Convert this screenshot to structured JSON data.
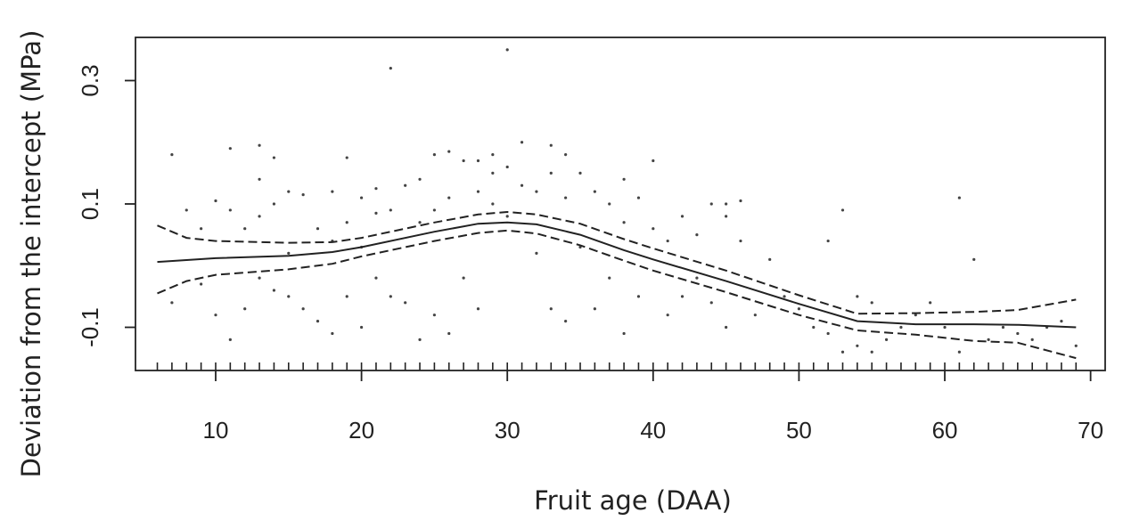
{
  "chart_data": {
    "type": "line",
    "title": "",
    "xlabel": "Fruit age (DAA)",
    "ylabel": "Deviation from the intercept (MPa)",
    "xlim": [
      4.5,
      71
    ],
    "ylim": [
      -0.17,
      0.37
    ],
    "x_ticks": [
      10,
      20,
      30,
      40,
      50,
      60,
      70
    ],
    "y_ticks": [
      -0.1,
      0.1,
      0.3
    ],
    "grid": false,
    "legend": "none",
    "series": [
      {
        "style": "solid",
        "x": [
          6,
          10,
          15,
          18,
          20,
          25,
          28,
          30,
          32,
          35,
          38,
          40,
          45,
          50,
          54,
          58,
          62,
          65,
          69
        ],
        "y": [
          0.006,
          0.012,
          0.016,
          0.022,
          0.03,
          0.055,
          0.068,
          0.07,
          0.067,
          0.05,
          0.025,
          0.01,
          -0.025,
          -0.062,
          -0.09,
          -0.095,
          -0.095,
          -0.096,
          -0.1
        ]
      },
      {
        "style": "dashed",
        "x": [
          6,
          8,
          10,
          15,
          18,
          20,
          25,
          28,
          30,
          32,
          35,
          38,
          40,
          45,
          50,
          54,
          58,
          62,
          65,
          69
        ],
        "y": [
          0.065,
          0.045,
          0.04,
          0.037,
          0.038,
          0.045,
          0.07,
          0.083,
          0.087,
          0.083,
          0.068,
          0.043,
          0.028,
          -0.008,
          -0.048,
          -0.078,
          -0.077,
          -0.075,
          -0.072,
          -0.055
        ]
      },
      {
        "style": "dashed",
        "x": [
          6,
          8,
          10,
          15,
          18,
          20,
          25,
          28,
          30,
          32,
          35,
          38,
          40,
          45,
          50,
          54,
          58,
          62,
          65,
          69
        ],
        "y": [
          -0.045,
          -0.025,
          -0.015,
          -0.006,
          0.003,
          0.015,
          0.04,
          0.053,
          0.057,
          0.052,
          0.033,
          0.008,
          -0.008,
          -0.043,
          -0.08,
          -0.105,
          -0.112,
          -0.122,
          -0.125,
          -0.15
        ]
      }
    ],
    "points": {
      "x": [
        7,
        7,
        8,
        9,
        9,
        10,
        10,
        11,
        11,
        11,
        12,
        12,
        13,
        13,
        13,
        13,
        14,
        14,
        14,
        15,
        15,
        15,
        16,
        16,
        17,
        17,
        18,
        18,
        18,
        19,
        19,
        19,
        20,
        20,
        20,
        21,
        21,
        21,
        22,
        22,
        22,
        23,
        23,
        24,
        24,
        24,
        25,
        25,
        25,
        26,
        26,
        26,
        27,
        27,
        28,
        28,
        28,
        29,
        29,
        29,
        30,
        30,
        30,
        31,
        31,
        32,
        32,
        33,
        33,
        33,
        34,
        34,
        34,
        35,
        35,
        36,
        36,
        37,
        37,
        38,
        38,
        38,
        39,
        39,
        40,
        40,
        41,
        41,
        42,
        42,
        43,
        43,
        44,
        44,
        45,
        45,
        45,
        46,
        46,
        47,
        48,
        49,
        50,
        51,
        52,
        52,
        53,
        53,
        54,
        54,
        55,
        55,
        56,
        57,
        58,
        59,
        60,
        61,
        61,
        62,
        63,
        64,
        65,
        66,
        67,
        68,
        69
      ],
      "y": [
        0.18,
        -0.06,
        0.09,
        0.06,
        -0.03,
        0.105,
        -0.08,
        0.19,
        0.09,
        -0.12,
        0.06,
        -0.07,
        0.195,
        0.14,
        0.08,
        -0.02,
        0.175,
        0.1,
        -0.04,
        0.12,
        0.02,
        -0.05,
        0.115,
        -0.07,
        0.06,
        -0.09,
        0.12,
        0.04,
        -0.11,
        0.175,
        0.07,
        -0.05,
        0.11,
        0.03,
        -0.1,
        0.125,
        0.085,
        -0.02,
        0.32,
        0.09,
        -0.05,
        0.13,
        -0.06,
        0.14,
        0.07,
        -0.12,
        0.18,
        0.09,
        -0.08,
        0.185,
        0.11,
        -0.11,
        0.17,
        -0.02,
        0.17,
        0.12,
        -0.07,
        0.18,
        0.15,
        0.1,
        0.35,
        0.16,
        0.08,
        0.2,
        0.13,
        0.12,
        0.02,
        0.195,
        0.15,
        -0.07,
        0.18,
        0.11,
        -0.09,
        0.15,
        0.03,
        0.12,
        -0.07,
        0.1,
        -0.02,
        0.14,
        0.07,
        -0.11,
        0.11,
        -0.05,
        0.17,
        0.06,
        0.04,
        -0.08,
        0.08,
        -0.05,
        0.05,
        -0.02,
        0.1,
        -0.06,
        0.1,
        0.08,
        -0.1,
        0.105,
        0.04,
        -0.08,
        0.01,
        -0.05,
        -0.07,
        -0.1,
        0.04,
        -0.11,
        0.09,
        -0.14,
        -0.05,
        -0.13,
        -0.06,
        -0.14,
        -0.12,
        -0.1,
        -0.08,
        -0.06,
        -0.1,
        0.11,
        -0.14,
        0.01,
        -0.12,
        -0.1,
        -0.11,
        -0.12,
        -0.1,
        -0.09,
        -0.13
      ]
    },
    "rug_x": [
      6,
      7,
      8,
      9,
      10,
      11,
      12,
      13,
      14,
      15,
      16,
      17,
      18,
      19,
      20,
      21,
      22,
      23,
      24,
      25,
      26,
      27,
      28,
      29,
      30,
      31,
      32,
      33,
      34,
      35,
      36,
      37,
      38,
      39,
      40,
      41,
      42,
      43,
      44,
      45,
      46,
      47,
      48,
      49,
      50,
      51,
      52,
      53,
      54,
      55,
      56,
      57,
      58,
      59,
      60,
      61,
      62,
      63,
      64,
      65,
      66,
      67,
      68,
      69
    ]
  }
}
